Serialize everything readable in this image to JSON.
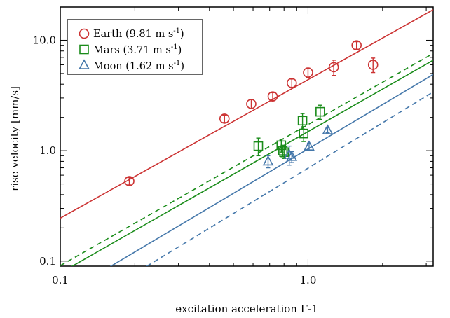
{
  "chart_data": {
    "type": "scatter",
    "xlabel": "excitation acceleration Γ-1",
    "ylabel": "rise velocity [mm/s]",
    "xscale": "log",
    "yscale": "log",
    "xlim": [
      0.1,
      3.2
    ],
    "ylim": [
      0.09,
      20
    ],
    "xticks": [
      {
        "value": 0.1,
        "label": "0.1"
      },
      {
        "value": 1.0,
        "label": "1.0"
      }
    ],
    "yticks": [
      {
        "value": 0.1,
        "label": "0.1"
      },
      {
        "value": 1.0,
        "label": "1.0"
      },
      {
        "value": 10.0,
        "label": "10.0"
      }
    ],
    "legend_position": "top-left",
    "series": [
      {
        "name": "Earth (9.81 m s",
        "superscript": "-1",
        "name_close": ")",
        "marker": "circle",
        "color": "#cc3333",
        "x": [
          0.19,
          0.46,
          0.59,
          0.72,
          0.86,
          1.0,
          1.27,
          1.57,
          1.83
        ],
        "y": [
          0.53,
          1.95,
          2.65,
          3.1,
          4.1,
          5.1,
          5.7,
          9.0,
          6.0
        ],
        "yerr": [
          0.04,
          0.15,
          0.25,
          0.25,
          0.35,
          0.5,
          0.9,
          0.7,
          0.9
        ]
      },
      {
        "name": "Mars (3.71 m s",
        "superscript": "-1",
        "name_close": ")",
        "marker": "square",
        "color": "#1a8c1a",
        "x": [
          0.63,
          0.78,
          0.79,
          0.8,
          0.95,
          0.96,
          1.12
        ],
        "y": [
          1.1,
          1.12,
          1.0,
          0.97,
          1.87,
          1.43,
          2.25
        ],
        "yerr": [
          0.2,
          0.15,
          0.12,
          0.12,
          0.3,
          0.22,
          0.33
        ]
      },
      {
        "name": "Moon (1.62 m s",
        "superscript": "-1",
        "name_close": ")",
        "marker": "triangle",
        "color": "#4477aa",
        "x": [
          0.69,
          0.84,
          0.86,
          1.01,
          1.2
        ],
        "y": [
          0.8,
          0.92,
          0.88,
          1.09,
          1.53
        ],
        "yerr": [
          0.1,
          0.18,
          0.1,
          0.08,
          0.08
        ]
      }
    ],
    "fit_lines": [
      {
        "color": "#cc3333",
        "dash": false,
        "points": [
          [
            0.1,
            0.245
          ],
          [
            3.2,
            18.9
          ]
        ]
      },
      {
        "color": "#1a8c1a",
        "dash": true,
        "points": [
          [
            0.1,
            0.091
          ],
          [
            3.2,
            7.6
          ]
        ]
      },
      {
        "color": "#1a8c1a",
        "dash": false,
        "points": [
          [
            0.1,
            0.078
          ],
          [
            3.2,
            6.6
          ]
        ]
      },
      {
        "color": "#4477aa",
        "dash": false,
        "points": [
          [
            0.1,
            0.048
          ],
          [
            3.2,
            4.9
          ]
        ]
      },
      {
        "color": "#4477aa",
        "dash": true,
        "points": [
          [
            0.1,
            0.03
          ],
          [
            3.2,
            3.4
          ]
        ]
      }
    ]
  }
}
